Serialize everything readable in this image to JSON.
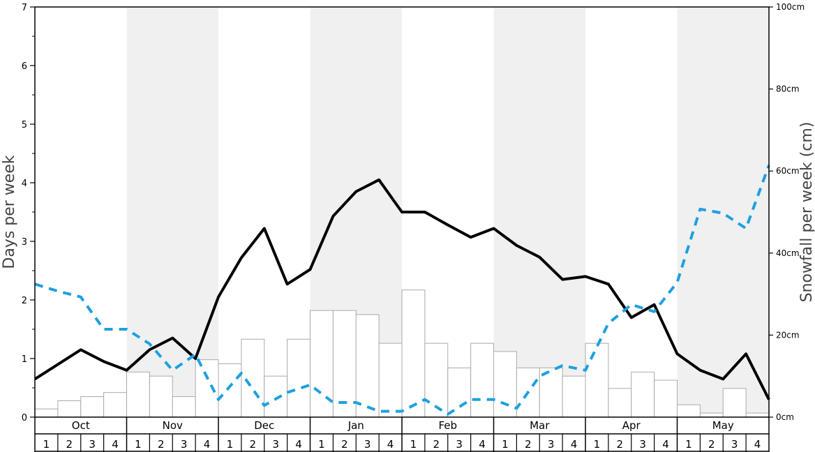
{
  "chart_data": {
    "type": "bar+line",
    "left_axis": {
      "label": "Days per week",
      "ylim": [
        0,
        7
      ],
      "ticks": [
        "0",
        "1",
        "2",
        "3",
        "4",
        "5",
        "6",
        "7"
      ]
    },
    "right_axis": {
      "label": "Snowfall per week (cm)",
      "ylim": [
        0,
        100
      ],
      "ticks": [
        "0cm",
        "20cm",
        "40cm",
        "60cm",
        "80cm",
        "100cm"
      ]
    },
    "months": [
      "Oct",
      "Nov",
      "Dec",
      "Jan",
      "Feb",
      "Mar",
      "Apr",
      "May"
    ],
    "weeks": [
      "1",
      "2",
      "3",
      "4"
    ],
    "shaded_months": [
      "Nov",
      "Jan",
      "Mar",
      "May"
    ],
    "series": [
      {
        "kind": "bar",
        "axis": "right",
        "color": "#ffffff",
        "stroke": "#aaaaaa",
        "values": [
          2,
          4,
          5,
          6,
          11,
          10,
          5,
          14,
          13,
          19,
          10,
          19,
          26,
          26,
          25,
          18,
          31,
          18,
          12,
          18,
          16,
          12,
          12,
          10,
          18,
          7,
          11,
          9,
          3,
          1,
          7,
          1
        ]
      },
      {
        "kind": "line",
        "axis": "left",
        "color": "#000000",
        "dash": "solid",
        "values": [
          0.65,
          0.9,
          1.15,
          0.95,
          0.8,
          1.15,
          1.35,
          1.0,
          2.05,
          2.72,
          3.22,
          2.27,
          2.52,
          3.43,
          3.85,
          4.05,
          3.5,
          3.5,
          3.28,
          3.07,
          3.22,
          2.93,
          2.73,
          2.35,
          2.4,
          2.27,
          1.7,
          1.92,
          1.08,
          0.8,
          0.65,
          1.08,
          0.3
        ]
      },
      {
        "kind": "line",
        "axis": "left",
        "color": "#1ea0e0",
        "dash": "dashed",
        "values": [
          2.27,
          2.15,
          2.05,
          1.5,
          1.5,
          1.25,
          0.8,
          1.07,
          0.3,
          0.75,
          0.2,
          0.42,
          0.55,
          0.25,
          0.25,
          0.1,
          0.1,
          0.3,
          0.05,
          0.3,
          0.3,
          0.15,
          0.7,
          0.88,
          0.8,
          1.6,
          1.92,
          1.8,
          2.3,
          3.55,
          3.48,
          3.22,
          4.3
        ]
      }
    ]
  }
}
